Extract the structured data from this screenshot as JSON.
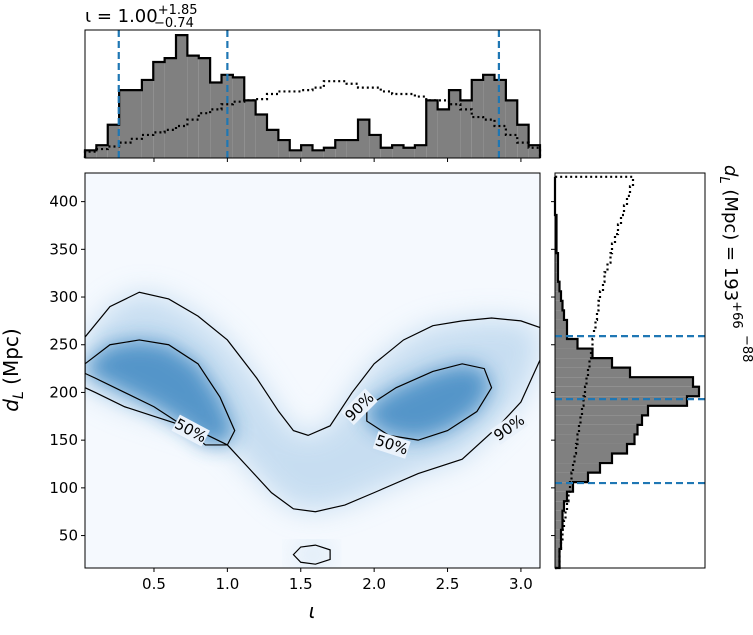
{
  "chart_data": [
    {
      "type": "contour",
      "xlabel": "ι",
      "ylabel": {
        "symbol": "d",
        "sub": "L",
        "unit": " (Mpc)"
      },
      "xlim": [
        0.03,
        3.13
      ],
      "ylim": [
        16,
        430
      ],
      "xticks": [
        0.5,
        {
          "value": 1.0,
          "label": "1.0"
        },
        1.5,
        {
          "value": 2.0,
          "label": "2.0"
        },
        2.5,
        {
          "value": 3.0,
          "label": "3.0"
        }
      ],
      "yticks": [
        50,
        100,
        150,
        200,
        250,
        300,
        350,
        400
      ],
      "contours": [
        {
          "level": "90%",
          "x": [
            0.03,
            0.2,
            0.4,
            0.6,
            0.8,
            1.0,
            1.2,
            1.35,
            1.45,
            1.55,
            1.7,
            1.85,
            2.0,
            2.2,
            2.4,
            2.6,
            2.8,
            3.0,
            3.13,
            3.13,
            3.0,
            2.85,
            2.6,
            2.3,
            2.0,
            1.8,
            1.6,
            1.45,
            1.3,
            1.15,
            1.0,
            0.8,
            0.5,
            0.3,
            0.1,
            0.03
          ],
          "y": [
            258,
            290,
            305,
            298,
            280,
            255,
            215,
            180,
            160,
            155,
            165,
            200,
            230,
            255,
            270,
            275,
            278,
            275,
            268,
            234,
            190,
            165,
            130,
            115,
            95,
            82,
            75,
            78,
            95,
            120,
            145,
            160,
            175,
            185,
            200,
            205
          ]
        },
        {
          "level": "90%",
          "x": [
            1.45,
            1.5,
            1.6,
            1.7,
            1.7,
            1.6,
            1.5
          ],
          "y": [
            30,
            38,
            40,
            35,
            25,
            20,
            22
          ]
        },
        {
          "level": "50%",
          "x": [
            0.03,
            0.2,
            0.4,
            0.6,
            0.8,
            0.95,
            1.05,
            1.0,
            0.85,
            0.7,
            0.5,
            0.3,
            0.1,
            0.03
          ],
          "y": [
            230,
            250,
            255,
            250,
            230,
            195,
            160,
            145,
            145,
            165,
            185,
            200,
            215,
            220
          ]
        },
        {
          "level": "50%",
          "x": [
            1.95,
            2.15,
            2.4,
            2.6,
            2.75,
            2.8,
            2.7,
            2.5,
            2.3,
            2.1,
            1.95
          ],
          "y": [
            185,
            205,
            222,
            230,
            225,
            205,
            180,
            160,
            150,
            155,
            170
          ]
        }
      ]
    },
    {
      "type": "histogram",
      "orientation": "vertical",
      "title": {
        "text": "ι = 1.00",
        "sup": "+1.85",
        "sub": "−0.74"
      },
      "xlim": [
        0.03,
        3.13
      ],
      "ylim": [
        0,
        1
      ],
      "xticks": [
        0.5,
        1.0,
        1.5,
        2.0,
        2.5,
        3.0
      ],
      "bins": [
        0.03,
        0.1075,
        0.185,
        0.2625,
        0.34,
        0.4175,
        0.495,
        0.5725,
        0.65,
        0.7275,
        0.805,
        0.8825,
        0.96,
        1.0375,
        1.115,
        1.1925,
        1.27,
        1.3475,
        1.425,
        1.5025,
        1.58,
        1.6575,
        1.735,
        1.8125,
        1.89,
        1.9675,
        2.045,
        2.1225,
        2.2,
        2.2775,
        2.355,
        2.4325,
        2.51,
        2.5875,
        2.665,
        2.7425,
        2.82,
        2.8975,
        2.975,
        3.0525,
        3.13
      ],
      "counts": [
        0.06,
        0.1,
        0.26,
        0.53,
        0.53,
        0.61,
        0.75,
        0.78,
        0.96,
        0.8,
        0.78,
        0.59,
        0.65,
        0.63,
        0.45,
        0.34,
        0.22,
        0.14,
        0.06,
        0.1,
        0.06,
        0.08,
        0.14,
        0.14,
        0.3,
        0.18,
        0.08,
        0.1,
        0.08,
        0.1,
        0.45,
        0.38,
        0.53,
        0.45,
        0.61,
        0.65,
        0.61,
        0.45,
        0.26,
        0.1
      ],
      "prior_counts": [
        0.05,
        0.07,
        0.09,
        0.12,
        0.15,
        0.18,
        0.2,
        0.22,
        0.25,
        0.3,
        0.35,
        0.38,
        0.42,
        0.44,
        0.45,
        0.46,
        0.5,
        0.52,
        0.52,
        0.53,
        0.55,
        0.6,
        0.6,
        0.58,
        0.55,
        0.55,
        0.52,
        0.5,
        0.5,
        0.48,
        0.45,
        0.45,
        0.42,
        0.38,
        0.32,
        0.3,
        0.25,
        0.18,
        0.12,
        0.08
      ],
      "lines": [
        0.26,
        1.0,
        2.85
      ],
      "color": "#808080",
      "line_color": "#1f77b4"
    },
    {
      "type": "histogram",
      "orientation": "horizontal",
      "title": {
        "symbol": "d",
        "sub": "L",
        "text": " (Mpc) = 193",
        "sup": "+66",
        "sub2": "−88"
      },
      "xlim": [
        0,
        1
      ],
      "ylim": [
        16,
        430
      ],
      "yticks": [
        50,
        100,
        150,
        200,
        250,
        300,
        350,
        400
      ],
      "bins": [
        16,
        26,
        36,
        46,
        56,
        66,
        76,
        86,
        96,
        106,
        116,
        126,
        136,
        146,
        156,
        166,
        176,
        186,
        196,
        206,
        216,
        226,
        236,
        246,
        256,
        266,
        276,
        286,
        296,
        306,
        316,
        326,
        336,
        346,
        356,
        366,
        376,
        386,
        396,
        406,
        416,
        426
      ],
      "counts": [
        0.03,
        0.03,
        0.04,
        0.04,
        0.05,
        0.05,
        0.06,
        0.08,
        0.12,
        0.22,
        0.3,
        0.38,
        0.48,
        0.53,
        0.55,
        0.58,
        0.62,
        0.88,
        0.96,
        0.92,
        0.5,
        0.38,
        0.25,
        0.15,
        0.08,
        0.08,
        0.06,
        0.05,
        0.04,
        0.03,
        0.02,
        0.02,
        0.02,
        0.01,
        0.01,
        0.01,
        0.01,
        0,
        0,
        0,
        0
      ],
      "prior_counts": [
        0.03,
        0.03,
        0.04,
        0.05,
        0.06,
        0.07,
        0.08,
        0.09,
        0.1,
        0.11,
        0.12,
        0.13,
        0.14,
        0.15,
        0.16,
        0.17,
        0.18,
        0.19,
        0.2,
        0.21,
        0.22,
        0.23,
        0.24,
        0.25,
        0.26,
        0.27,
        0.28,
        0.29,
        0.3,
        0.32,
        0.33,
        0.35,
        0.37,
        0.38,
        0.4,
        0.42,
        0.44,
        0.46,
        0.48,
        0.5,
        0.52
      ],
      "lines": [
        105,
        193,
        259
      ],
      "color": "#808080",
      "line_color": "#1f77b4"
    }
  ]
}
